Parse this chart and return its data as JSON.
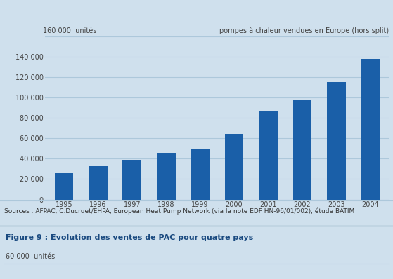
{
  "years": [
    "1995",
    "1996",
    "1997",
    "1998",
    "1999",
    "2000",
    "2001",
    "2002",
    "2003",
    "2004"
  ],
  "values": [
    26000,
    33000,
    39000,
    46000,
    49000,
    64000,
    86000,
    97000,
    115000,
    138000
  ],
  "bar_color": "#1a5fa8",
  "bg_color_chart": "#cfe0ed",
  "bg_color_bottom": "#d8e8f2",
  "ylim": [
    0,
    160000
  ],
  "yticks": [
    0,
    20000,
    40000,
    60000,
    80000,
    100000,
    120000,
    140000,
    160000
  ],
  "top_label_left": "160 000  unités",
  "top_label_right": "pompes à chaleur vendues en Europe (hors split)",
  "source_text": "Sources : AFPAC, C.Ducruet/EHPA, European Heat Pump Network (via la note EDF HN-96/01/002), étude BATIM",
  "figure_title": "Figure 9 : Evolution des ventes de PAC pour quatre pays",
  "bottom_label": "60 000  unités",
  "grid_color": "#adc8db",
  "tick_color": "#444444",
  "label_fontsize": 7.0,
  "axis_fontsize": 7.0,
  "source_fontsize": 6.5,
  "title_fontsize": 8.0
}
